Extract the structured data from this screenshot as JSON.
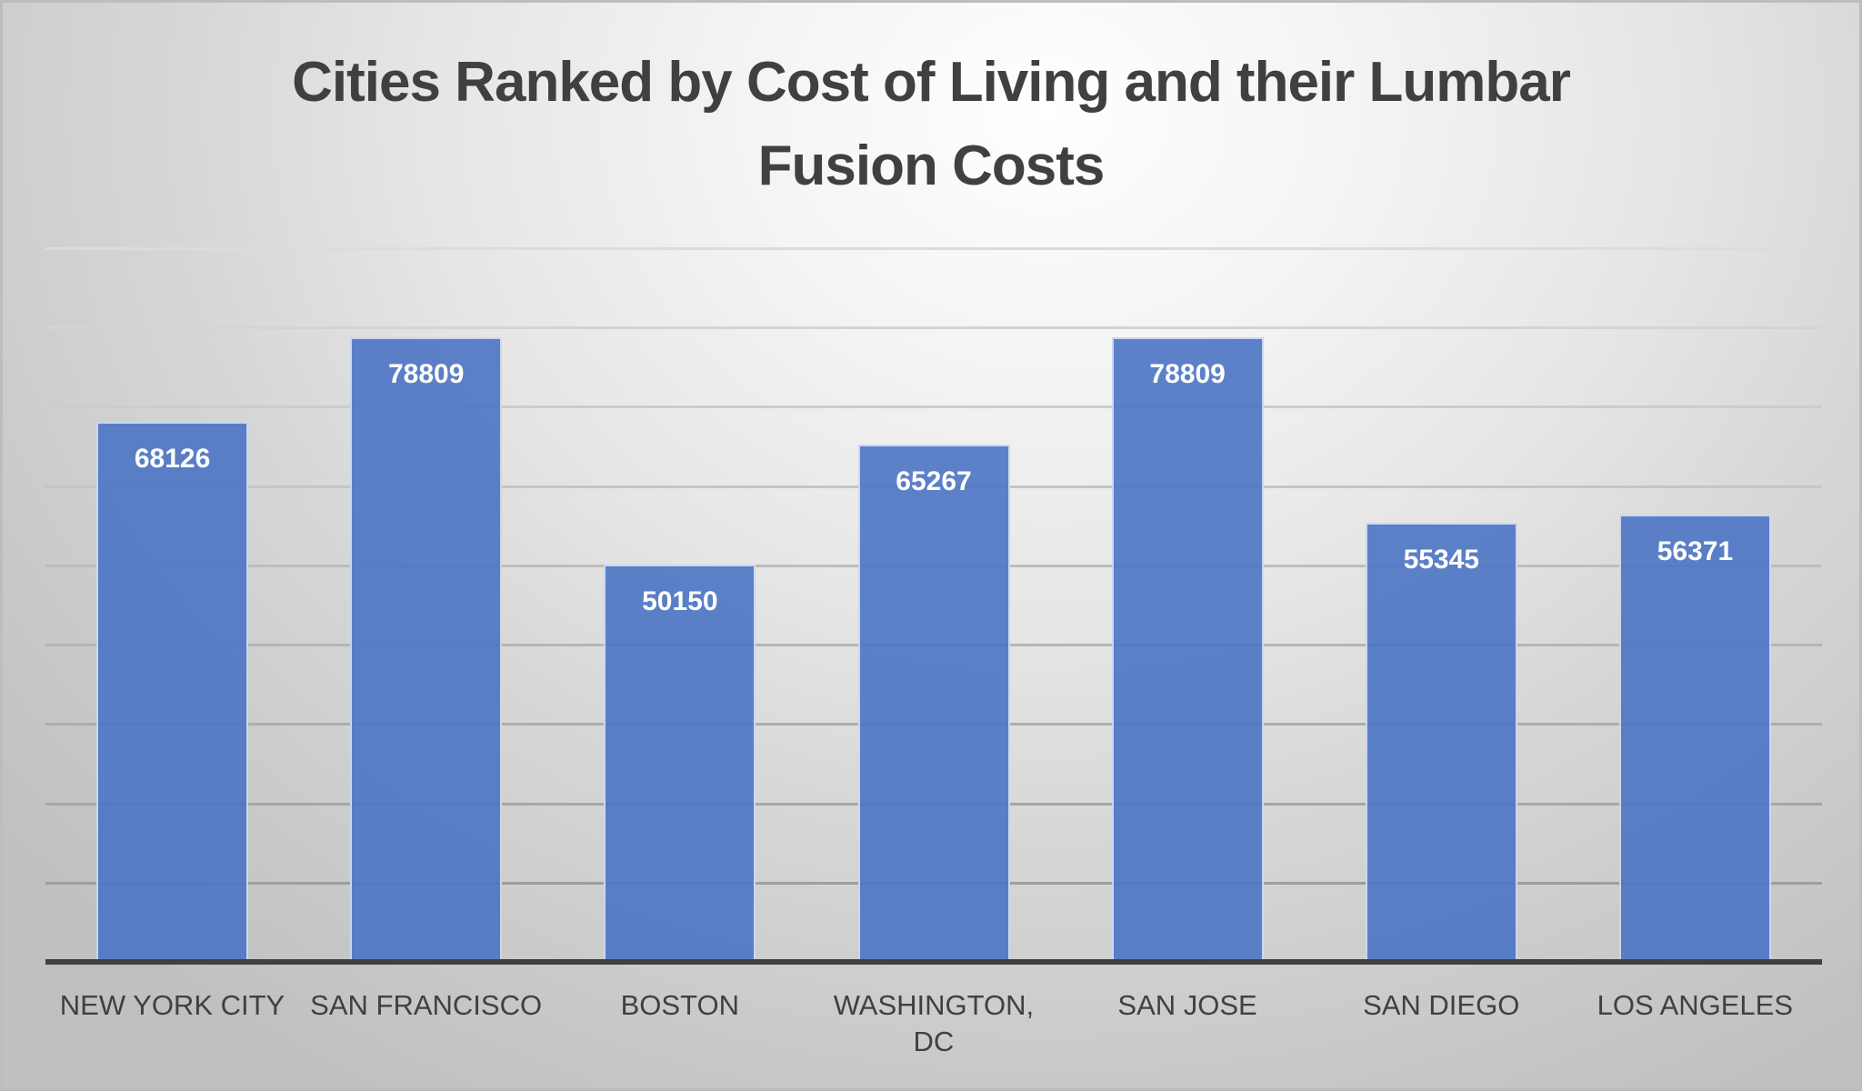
{
  "chart_data": {
    "type": "bar",
    "title": "Cities Ranked by Cost of Living and their Lumbar Fusion Costs",
    "title_lines": [
      "Cities Ranked by Cost of Living and their Lumbar",
      "Fusion Costs"
    ],
    "categories": [
      "NEW YORK CITY",
      "SAN FRANCISCO",
      "BOSTON",
      "WASHINGTON, DC",
      "SAN JOSE",
      "SAN DIEGO",
      "LOS ANGELES"
    ],
    "values": [
      68126,
      78809,
      50150,
      65267,
      78809,
      55345,
      56371
    ],
    "data_labels": [
      "68126",
      "78809",
      "50150",
      "65267",
      "78809",
      "55345",
      "56371"
    ],
    "xlabel": "",
    "ylabel": "",
    "ylim": [
      0,
      90000
    ],
    "y_gridline_step": 10000,
    "y_tick_labels_visible": false,
    "grid": true,
    "legend": null,
    "colors": {
      "bar": "#5a7fc7",
      "title": "#404040",
      "axis": "#404040",
      "data_label": "#ffffff"
    }
  }
}
